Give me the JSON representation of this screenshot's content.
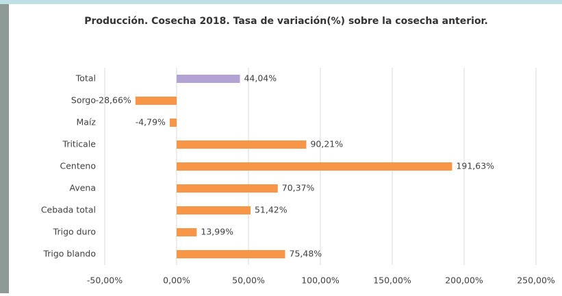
{
  "chart_data": {
    "type": "barh",
    "title": "Producción. Cosecha 2018. Tasa de variación(%) sobre la cosecha anterior.",
    "categories": [
      "Total",
      "Sorgo",
      "Maíz",
      "Triticale",
      "Centeno",
      "Avena",
      "Cebada total",
      "Trigo duro",
      "Trigo blando"
    ],
    "values": [
      44.04,
      -28.66,
      -4.79,
      90.21,
      191.63,
      70.37,
      51.42,
      13.99,
      75.48
    ],
    "value_labels": [
      "44,04%",
      "-28,66%",
      "-4,79%",
      "90,21%",
      "191,63%",
      "70,37%",
      "51,42%",
      "13,99%",
      "75,48%"
    ],
    "colors": [
      "#b3a2d4",
      "#f79646",
      "#f79646",
      "#f79646",
      "#f79646",
      "#f79646",
      "#f79646",
      "#f79646",
      "#f79646"
    ],
    "xlim": [
      -50,
      250
    ],
    "xticks": [
      {
        "value": -50,
        "label": "-50,00%"
      },
      {
        "value": 0,
        "label": "0,00%"
      },
      {
        "value": 50,
        "label": "50,00%"
      },
      {
        "value": 100,
        "label": "100,00%"
      },
      {
        "value": 150,
        "label": "150,00%"
      },
      {
        "value": 200,
        "label": "200,00%"
      },
      {
        "value": 250,
        "label": "250,00%"
      }
    ],
    "grid": true
  }
}
